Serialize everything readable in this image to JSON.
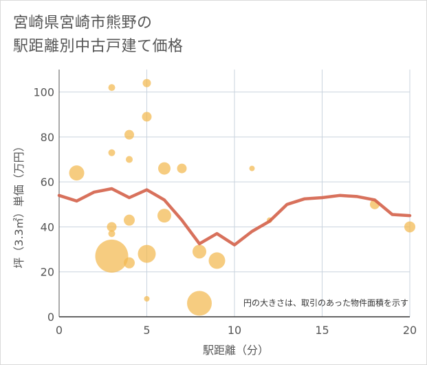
{
  "chart_data": {
    "type": "scatter",
    "title_lines": [
      "宮崎県宮崎市熊野の",
      "駅距離別中古戸建て価格"
    ],
    "xlabel": "駅距離（分）",
    "ylabel": "坪（3.3㎡）単価（万円）",
    "xlim": [
      0,
      20
    ],
    "ylim": [
      0,
      110
    ],
    "xticks": [
      0,
      5,
      10,
      15,
      20
    ],
    "yticks": [
      0,
      20,
      40,
      60,
      80,
      100
    ],
    "note": "円の大きさは、取引のあった物件面積を示す",
    "colors": {
      "bubble": "#f2b84f",
      "line": "#d4624a",
      "grid": "#c9d3de"
    },
    "points": [
      {
        "x": 1,
        "y": 64,
        "r": 11
      },
      {
        "x": 3,
        "y": 102,
        "r": 5
      },
      {
        "x": 3,
        "y": 73,
        "r": 5
      },
      {
        "x": 3,
        "y": 40,
        "r": 7
      },
      {
        "x": 3,
        "y": 37,
        "r": 5
      },
      {
        "x": 3,
        "y": 27,
        "r": 24
      },
      {
        "x": 4,
        "y": 81,
        "r": 7
      },
      {
        "x": 4,
        "y": 70,
        "r": 5
      },
      {
        "x": 4,
        "y": 43,
        "r": 8
      },
      {
        "x": 4,
        "y": 24,
        "r": 8
      },
      {
        "x": 5,
        "y": 104,
        "r": 6
      },
      {
        "x": 5,
        "y": 89,
        "r": 7
      },
      {
        "x": 5,
        "y": 28,
        "r": 13
      },
      {
        "x": 5,
        "y": 8,
        "r": 4
      },
      {
        "x": 6,
        "y": 66,
        "r": 9
      },
      {
        "x": 6,
        "y": 45,
        "r": 10
      },
      {
        "x": 7,
        "y": 66,
        "r": 7
      },
      {
        "x": 8,
        "y": 29,
        "r": 10
      },
      {
        "x": 8,
        "y": 6,
        "r": 18
      },
      {
        "x": 9,
        "y": 25,
        "r": 12
      },
      {
        "x": 11,
        "y": 66,
        "r": 4
      },
      {
        "x": 12,
        "y": 43,
        "r": 4
      },
      {
        "x": 18,
        "y": 50,
        "r": 7
      },
      {
        "x": 20,
        "y": 40,
        "r": 8
      }
    ],
    "line": {
      "x": [
        0,
        1,
        2,
        3,
        4,
        5,
        6,
        7,
        8,
        9,
        10,
        11,
        12,
        13,
        14,
        15,
        16,
        17,
        18,
        19,
        20
      ],
      "y": [
        54,
        51.5,
        55.5,
        57,
        53,
        56.5,
        52,
        43,
        32.5,
        37,
        32,
        38,
        42.5,
        50,
        52.5,
        53,
        54,
        53.5,
        52,
        45.5,
        45
      ]
    }
  }
}
